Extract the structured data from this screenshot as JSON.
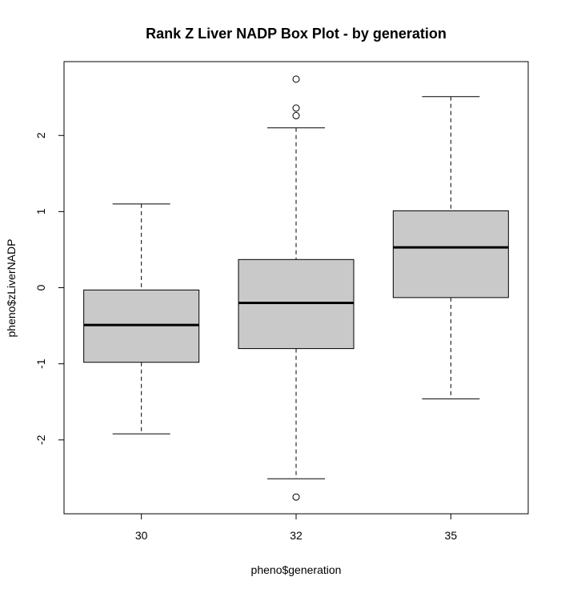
{
  "chart_data": {
    "type": "box",
    "title": "Rank Z Liver NADP Box Plot - by generation",
    "xlabel": "pheno$generation",
    "ylabel": "pheno$zLiverNADP",
    "ylim": [
      -2.97,
      2.97
    ],
    "yticks": [
      -2,
      -1,
      0,
      1,
      2
    ],
    "ytick_labels": [
      "-2",
      "-1",
      "0",
      "1",
      "2"
    ],
    "categories": [
      "30",
      "32",
      "35"
    ],
    "boxes": [
      {
        "category": "30",
        "whisker_low": -1.92,
        "q1": -0.98,
        "median": -0.49,
        "q3": -0.03,
        "whisker_high": 1.1,
        "outliers": []
      },
      {
        "category": "32",
        "whisker_low": -2.51,
        "q1": -0.8,
        "median": -0.2,
        "q3": 0.37,
        "whisker_high": 2.1,
        "outliers": [
          2.74,
          2.36,
          2.26,
          -2.75
        ]
      },
      {
        "category": "35",
        "whisker_low": -1.46,
        "q1": -0.13,
        "median": 0.53,
        "q3": 1.01,
        "whisker_high": 2.51,
        "outliers": []
      }
    ],
    "box_fill": "#c9c9c9",
    "line_color": "#000000",
    "grid": false,
    "legend": "none"
  }
}
